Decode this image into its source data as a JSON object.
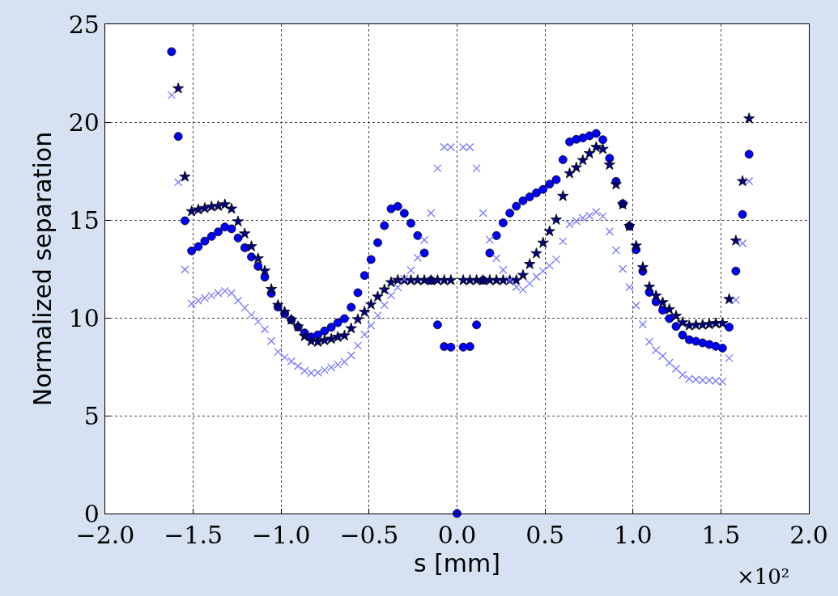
{
  "chart_data": {
    "type": "scatter",
    "xlabel": "s [mm]",
    "ylabel": "Normalized separation",
    "annotations": [
      "×10²"
    ],
    "x": [
      -1.623,
      -1.585,
      -1.547,
      -1.509,
      -1.471,
      -1.434,
      -1.396,
      -1.358,
      -1.32,
      -1.282,
      -1.245,
      -1.207,
      -1.169,
      -1.131,
      -1.093,
      -1.056,
      -1.018,
      -0.98,
      -0.942,
      -0.904,
      -0.867,
      -0.829,
      -0.791,
      -0.753,
      -0.715,
      -0.678,
      -0.64,
      -0.602,
      -0.564,
      -0.526,
      -0.489,
      -0.451,
      -0.413,
      -0.375,
      -0.337,
      -0.3,
      -0.262,
      -0.224,
      -0.186,
      -0.148,
      -0.111,
      -0.073,
      -0.035,
      0,
      0.035,
      0.073,
      0.111,
      0.148,
      0.186,
      0.224,
      0.262,
      0.3,
      0.337,
      0.375,
      0.413,
      0.451,
      0.489,
      0.526,
      0.564,
      0.602,
      0.64,
      0.678,
      0.715,
      0.753,
      0.791,
      0.829,
      0.867,
      0.904,
      0.942,
      0.98,
      1.018,
      1.056,
      1.093,
      1.131,
      1.169,
      1.207,
      1.245,
      1.282,
      1.32,
      1.358,
      1.396,
      1.434,
      1.471,
      1.509,
      1.547,
      1.585,
      1.623,
      1.66
    ],
    "series": [
      {
        "color": "#0000ff",
        "marker": "circle",
        "values": [
          23.6,
          19.27,
          14.96,
          13.42,
          13.64,
          13.92,
          14.16,
          14.39,
          14.64,
          14.55,
          14.08,
          13.58,
          13.11,
          12.63,
          12.08,
          11.25,
          10.55,
          10.21,
          9.89,
          9.53,
          9.23,
          9.02,
          9.13,
          9.33,
          9.52,
          9.75,
          9.96,
          10.54,
          11.28,
          12.16,
          12.98,
          13.84,
          14.71,
          15.57,
          15.69,
          15.34,
          14.83,
          14.2,
          13.31,
          11.91,
          9.64,
          8.53,
          8.5,
          0,
          8.5,
          8.53,
          9.64,
          11.92,
          13.31,
          14.2,
          14.85,
          15.35,
          15.7,
          15.98,
          16.18,
          16.38,
          16.56,
          16.83,
          17.06,
          18.08,
          18.99,
          19.12,
          19.19,
          19.3,
          19.42,
          19.1,
          18.15,
          16.97,
          15.83,
          14.68,
          13.48,
          12.38,
          11.3,
          10.82,
          10.39,
          9.96,
          9.56,
          9.12,
          8.88,
          8.8,
          8.72,
          8.64,
          8.54,
          8.45,
          9.52,
          12.39,
          15.28,
          18.36
        ]
      },
      {
        "color": "#00007f",
        "marker": "star",
        "values": [
          null,
          21.72,
          17.21,
          15.44,
          15.53,
          15.6,
          15.68,
          15.71,
          15.79,
          15.57,
          14.92,
          14.3,
          13.65,
          13.03,
          12.4,
          11.46,
          10.65,
          10.3,
          9.9,
          9.55,
          9.06,
          8.81,
          8.77,
          8.85,
          8.92,
          9.02,
          9.09,
          9.46,
          9.92,
          10.3,
          10.68,
          11.08,
          11.44,
          11.81,
          11.93,
          11.92,
          11.92,
          11.92,
          11.92,
          11.92,
          11.92,
          11.92,
          11.92,
          null,
          11.92,
          11.92,
          11.92,
          11.92,
          11.92,
          11.92,
          11.92,
          11.92,
          11.92,
          12.18,
          12.74,
          13.29,
          13.83,
          14.42,
          15.01,
          16.22,
          17.38,
          17.68,
          18.05,
          18.4,
          18.72,
          18.62,
          17.82,
          16.81,
          15.79,
          14.68,
          13.68,
          12.58,
          11.58,
          11.13,
          10.79,
          10.43,
          10.1,
          9.76,
          9.6,
          9.63,
          9.64,
          9.67,
          9.72,
          9.72,
          10.95,
          13.94,
          16.98,
          20.18
        ]
      },
      {
        "color": "#7878ff",
        "marker": "cross",
        "values": [
          21.38,
          16.93,
          12.47,
          10.72,
          10.88,
          11.01,
          11.13,
          11.26,
          11.37,
          11.26,
          10.88,
          10.51,
          10.15,
          9.81,
          9.41,
          8.81,
          8.26,
          7.98,
          7.78,
          7.53,
          7.29,
          7.18,
          7.2,
          7.33,
          7.47,
          7.61,
          7.75,
          8.08,
          8.58,
          9.14,
          9.61,
          10.12,
          10.65,
          11.15,
          11.56,
          11.99,
          12.43,
          13.07,
          13.98,
          15.35,
          17.64,
          18.72,
          18.72,
          null,
          18.72,
          18.72,
          17.64,
          15.35,
          13.99,
          13.05,
          12.45,
          11.92,
          11.57,
          11.44,
          11.75,
          12.1,
          12.39,
          12.67,
          12.98,
          13.91,
          14.78,
          14.94,
          15.1,
          15.22,
          15.4,
          15.19,
          14.41,
          13.45,
          12.5,
          11.57,
          10.63,
          9.67,
          8.77,
          8.35,
          8.05,
          7.71,
          7.4,
          7.09,
          6.88,
          6.85,
          6.81,
          6.81,
          6.78,
          6.74,
          7.94,
          10.91,
          13.8,
          16.98
        ]
      }
    ],
    "xlim": [
      -2,
      2
    ],
    "xticks": [
      {
        "value": -2,
        "label": "−2.0"
      },
      {
        "value": -1.5,
        "label": "−1.5"
      },
      {
        "value": -1,
        "label": "−1.0"
      },
      {
        "value": -0.5,
        "label": "−0.5"
      },
      {
        "value": 0,
        "label": "0.0"
      },
      {
        "value": 0.5,
        "label": "0.5"
      },
      {
        "value": 1,
        "label": "1.0"
      },
      {
        "value": 1.5,
        "label": "1.5"
      },
      {
        "value": 2,
        "label": "2.0"
      }
    ],
    "ylim": [
      0,
      25
    ],
    "yticks": [
      0,
      5,
      10,
      15,
      20,
      25
    ],
    "grid": true,
    "legend": false
  }
}
